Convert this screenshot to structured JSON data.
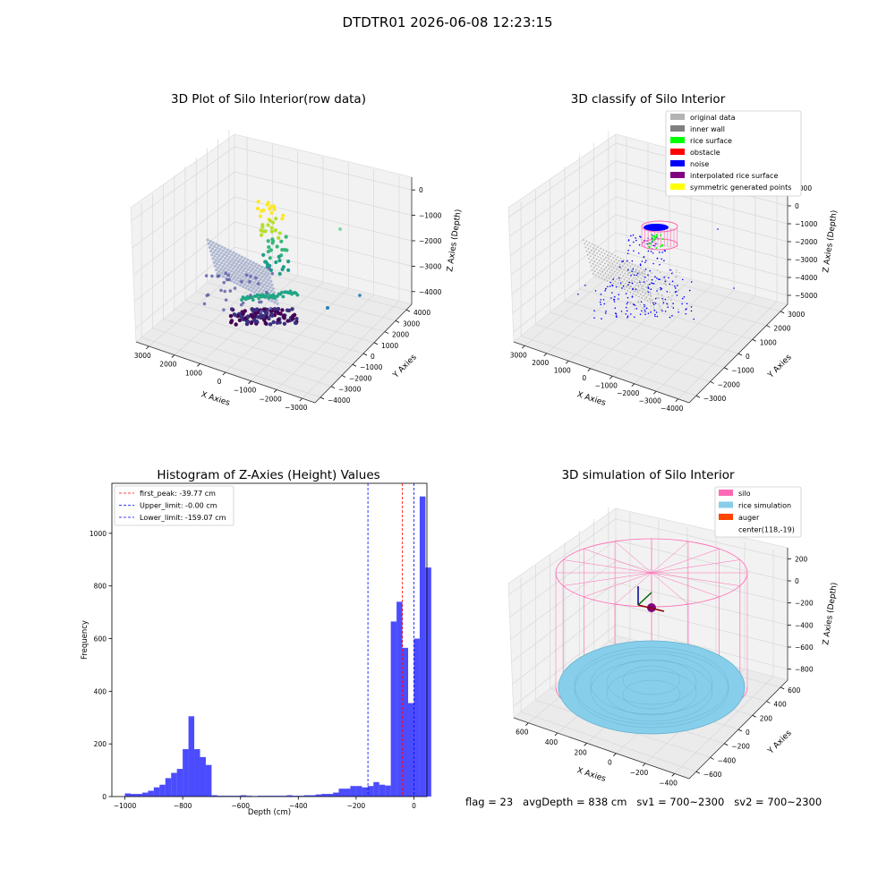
{
  "suptitle": "DTDTR01 2026-06-08 12:23:15",
  "panels": {
    "raw": {
      "title": "3D Plot of Silo Interior(row data)",
      "xlabel": "X Axies",
      "ylabel": "Y Axies",
      "zlabel": "Z Axies (Depth)",
      "xticks": [
        "−3000",
        "−2000",
        "−1000",
        "0",
        "1000",
        "2000",
        "3000"
      ],
      "yticks": [
        "−4000",
        "−3000",
        "−2000",
        "−1000",
        "0",
        "1000",
        "2000",
        "3000",
        "4000"
      ],
      "zticks": [
        "−4000",
        "−3000",
        "−2000",
        "−1000",
        "0"
      ]
    },
    "classify": {
      "title": "3D classify of Silo Interior",
      "xlabel": "X Axies",
      "ylabel": "Y Axies",
      "zlabel": "Z Axies (Depth)",
      "xticks": [
        "−4000",
        "−3000",
        "−2000",
        "−1000",
        "0",
        "1000",
        "2000",
        "3000"
      ],
      "yticks": [
        "−3000",
        "−2000",
        "−1000",
        "0",
        "1000",
        "2000",
        "3000"
      ],
      "zticks": [
        "−5000",
        "−4000",
        "−3000",
        "−2000",
        "−1000",
        "0",
        "1000"
      ],
      "legend": [
        {
          "label": "original data",
          "color": "#b3b3b3"
        },
        {
          "label": "inner wall",
          "color": "#808080"
        },
        {
          "label": "rice surface",
          "color": "#00ff00"
        },
        {
          "label": "obstacle",
          "color": "#ff0000"
        },
        {
          "label": "noise",
          "color": "#0000ff"
        },
        {
          "label": "interpolated rice surface",
          "color": "#800080"
        },
        {
          "label": "symmetric generated points",
          "color": "#ffff00"
        }
      ]
    },
    "simulation": {
      "title": "3D simulation of Silo Interior",
      "xlabel": "X Axies",
      "ylabel": "Y Axies",
      "zlabel": "Z Axies (Depth)",
      "xticks": [
        "−400",
        "−200",
        "0",
        "200",
        "400",
        "600"
      ],
      "yticks": [
        "−600",
        "−400",
        "−200",
        "0",
        "200",
        "400",
        "600"
      ],
      "zticks": [
        "−800",
        "−600",
        "−400",
        "−200",
        "0",
        "200"
      ],
      "legend": [
        {
          "label": "silo",
          "color": "#ff69b4"
        },
        {
          "label": "rice simulation",
          "color": "#87ceeb"
        },
        {
          "label": "auger",
          "color": "#ff4500"
        },
        {
          "label": "center(118,-19)",
          "color": ""
        }
      ]
    }
  },
  "chart_data": {
    "type": "bar",
    "title": "Histogram of Z-Axies (Height) Values",
    "xlabel": "Depth (cm)",
    "ylabel": "Frequency",
    "xlim": [
      -1045,
      45
    ],
    "ylim": [
      0,
      1190
    ],
    "xticks": [
      -1000,
      -800,
      -600,
      -400,
      -200,
      0
    ],
    "xtick_labels": [
      "−1000",
      "−800",
      "−600",
      "−400",
      "−200",
      "0"
    ],
    "yticks": [
      0,
      200,
      400,
      600,
      800,
      1000
    ],
    "bar_color": "#0000ff",
    "bin_start": -1000,
    "bin_width": 20,
    "values": [
      12,
      10,
      10,
      15,
      22,
      35,
      45,
      70,
      90,
      105,
      180,
      305,
      180,
      150,
      120,
      5,
      3,
      3,
      3,
      3,
      5,
      3,
      2,
      3,
      3,
      3,
      3,
      3,
      5,
      3,
      3,
      5,
      5,
      8,
      10,
      10,
      15,
      30,
      30,
      40,
      40,
      35,
      40,
      55,
      45,
      42,
      665,
      740,
      565,
      355,
      600,
      1140,
      870
    ],
    "legend": [
      {
        "label": "first_peak: -39.77 cm",
        "color": "#ff0000",
        "x": -39.77
      },
      {
        "label": "Upper_limit: -0.00 cm",
        "color": "#0000ff",
        "x": 0
      },
      {
        "label": "Lower_limit: -159.07 cm",
        "color": "#0000ff",
        "x": -159.07
      }
    ]
  },
  "status": {
    "flag": "flag = 23",
    "avg": "avgDepth = 838 cm",
    "sv1": "sv1 = 700~2300",
    "sv2": "sv2 = 700~2300"
  }
}
